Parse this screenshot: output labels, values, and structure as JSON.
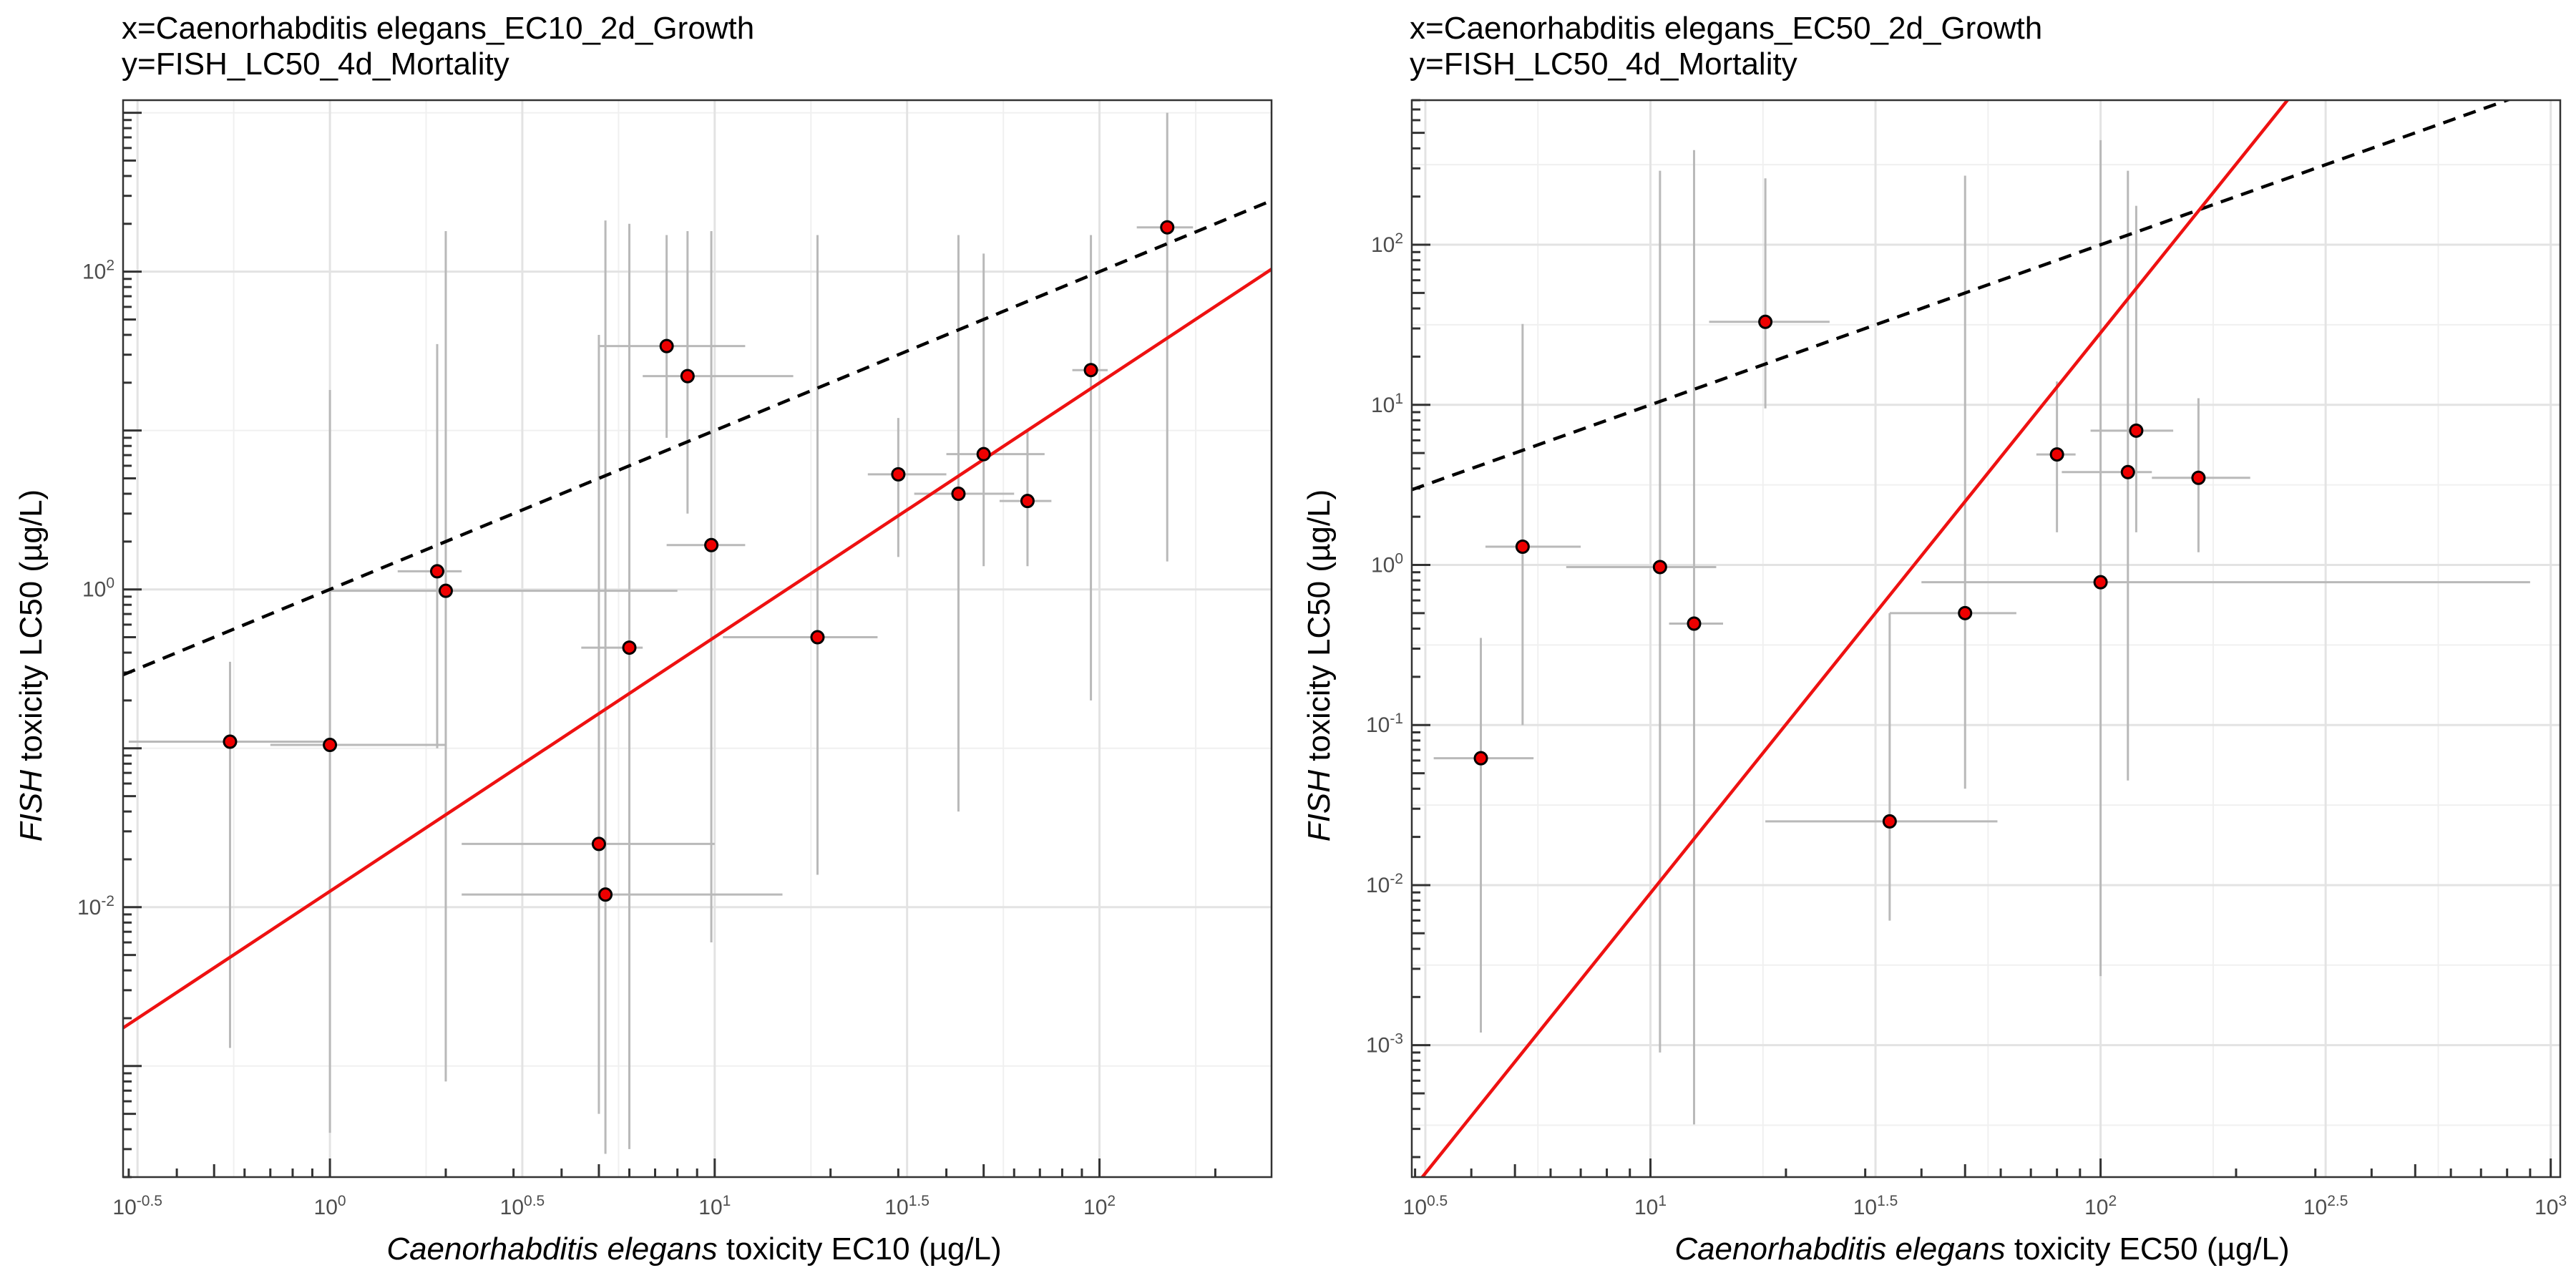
{
  "chart_data": [
    {
      "type": "scatter",
      "title_line1": "x=Caenorhabditis elegans_EC10_2d_Growth",
      "title_line2": "y=FISH_LC50_4d_Mortality",
      "xlabel_italic": "Caenorhabditis elegans",
      "xlabel_rest": " toxicity EC10 (µg/L)",
      "ylabel_italic": "FISH",
      "ylabel_rest": " toxicity LC50 (µg/L)",
      "xscale": "log10",
      "yscale": "log10",
      "xlim": [
        0.29,
        280
      ],
      "ylim": [
        0.0002,
        1200
      ],
      "x_ticks": [
        {
          "base": "10",
          "exp": "-0.5",
          "value": 0.3162
        },
        {
          "base": "10",
          "exp": "0",
          "value": 1
        },
        {
          "base": "10",
          "exp": "0.5",
          "value": 3.162
        },
        {
          "base": "10",
          "exp": "1",
          "value": 10
        },
        {
          "base": "10",
          "exp": "1.5",
          "value": 31.62
        },
        {
          "base": "10",
          "exp": "2",
          "value": 100
        }
      ],
      "y_ticks": [
        {
          "base": "10",
          "exp": "-2",
          "value": 0.01
        },
        {
          "base": "10",
          "exp": "0",
          "value": 1
        },
        {
          "base": "10",
          "exp": "2",
          "value": 100
        }
      ],
      "grid": true,
      "legend": "none",
      "fit_line": {
        "intercept_log10": -1.9,
        "slope": 1.6,
        "color": "#ee1111"
      },
      "reference_line": {
        "label": "1:1",
        "slope": 1,
        "intercept_log10": 0,
        "color": "#000000"
      },
      "points": [
        {
          "x": 0.55,
          "y": 0.11,
          "xmin": 0.3,
          "xmax": 1.0,
          "ymin": 0.0013,
          "ymax": 0.35
        },
        {
          "x": 1.0,
          "y": 0.105,
          "xmin": 0.7,
          "xmax": 2.0,
          "ymin": 0.00038,
          "ymax": 18
        },
        {
          "x": 1.9,
          "y": 1.3,
          "xmin": 1.5,
          "xmax": 2.2,
          "ymin": 0.1,
          "ymax": 35
        },
        {
          "x": 2.0,
          "y": 0.98,
          "xmin": 1.0,
          "xmax": 8.0,
          "ymin": 0.0008,
          "ymax": 180
        },
        {
          "x": 5.0,
          "y": 0.025,
          "xmin": 2.2,
          "xmax": 10.0,
          "ymin": 0.0005,
          "ymax": 40
        },
        {
          "x": 5.2,
          "y": 0.012,
          "xmin": 2.2,
          "xmax": 15.0,
          "ymin": 0.00028,
          "ymax": 210
        },
        {
          "x": 6.0,
          "y": 0.43,
          "xmin": 4.5,
          "xmax": 6.5,
          "ymin": 0.0003,
          "ymax": 200
        },
        {
          "x": 7.5,
          "y": 34,
          "xmin": 5.0,
          "xmax": 12.0,
          "ymin": 9,
          "ymax": 170
        },
        {
          "x": 8.5,
          "y": 22,
          "xmin": 6.5,
          "xmax": 16.0,
          "ymin": 3,
          "ymax": 180
        },
        {
          "x": 9.8,
          "y": 1.9,
          "xmin": 7.5,
          "xmax": 12.0,
          "ymin": 0.006,
          "ymax": 180
        },
        {
          "x": 18.5,
          "y": 0.5,
          "xmin": 10.5,
          "xmax": 26.5,
          "ymin": 0.016,
          "ymax": 170
        },
        {
          "x": 30.0,
          "y": 5.3,
          "xmin": 25.0,
          "xmax": 40.0,
          "ymin": 1.6,
          "ymax": 12
        },
        {
          "x": 43.0,
          "y": 4.0,
          "xmin": 33.0,
          "xmax": 60.0,
          "ymin": 0.04,
          "ymax": 170
        },
        {
          "x": 50.0,
          "y": 7.1,
          "xmin": 40.0,
          "xmax": 72.0,
          "ymin": 1.4,
          "ymax": 130
        },
        {
          "x": 65.0,
          "y": 3.6,
          "xmin": 55.0,
          "xmax": 75.0,
          "ymin": 1.4,
          "ymax": 10
        },
        {
          "x": 95.0,
          "y": 24,
          "xmin": 85.0,
          "xmax": 105.0,
          "ymin": 0.2,
          "ymax": 170
        },
        {
          "x": 150.0,
          "y": 190,
          "xmin": 125.0,
          "xmax": 175.0,
          "ymin": 1.5,
          "ymax": 1000
        }
      ]
    },
    {
      "type": "scatter",
      "title_line1": "x=Caenorhabditis elegans_EC50_2d_Growth",
      "title_line2": "y=FISH_LC50_4d_Mortality",
      "xlabel_italic": "Caenorhabditis elegans",
      "xlabel_rest": " toxicity EC50 (µg/L)",
      "ylabel_italic": "FISH",
      "ylabel_rest": " toxicity LC50 (µg/L)",
      "xscale": "log10",
      "yscale": "log10",
      "xlim": [
        2.95,
        1050
      ],
      "ylim": [
        0.00015,
        800
      ],
      "x_ticks": [
        {
          "base": "10",
          "exp": "0.5",
          "value": 3.162
        },
        {
          "base": "10",
          "exp": "1",
          "value": 10
        },
        {
          "base": "10",
          "exp": "1.5",
          "value": 31.62
        },
        {
          "base": "10",
          "exp": "2",
          "value": 100
        },
        {
          "base": "10",
          "exp": "2.5",
          "value": 316.2
        },
        {
          "base": "10",
          "exp": "3",
          "value": 1000
        }
      ],
      "y_ticks": [
        {
          "base": "10",
          "exp": "-3",
          "value": 0.001
        },
        {
          "base": "10",
          "exp": "-2",
          "value": 0.01
        },
        {
          "base": "10",
          "exp": "-1",
          "value": 0.1
        },
        {
          "base": "10",
          "exp": "0",
          "value": 1
        },
        {
          "base": "10",
          "exp": "1",
          "value": 10
        },
        {
          "base": "10",
          "exp": "2",
          "value": 100
        }
      ],
      "grid": true,
      "legend": "none",
      "fit_line": {
        "intercept_log10": -5.55,
        "slope": 3.5,
        "color": "#ee1111"
      },
      "reference_line": {
        "label": "1:1",
        "slope": 1,
        "intercept_log10": 0,
        "color": "#000000"
      },
      "points": [
        {
          "x": 4.2,
          "y": 0.062,
          "xmin": 3.3,
          "xmax": 5.5,
          "ymin": 0.0012,
          "ymax": 0.35
        },
        {
          "x": 5.2,
          "y": 1.3,
          "xmin": 4.3,
          "xmax": 7.0,
          "ymin": 0.1,
          "ymax": 32
        },
        {
          "x": 10.5,
          "y": 0.97,
          "xmin": 6.5,
          "xmax": 14.0,
          "ymin": 0.0009,
          "ymax": 290
        },
        {
          "x": 12.5,
          "y": 0.43,
          "xmin": 11.0,
          "xmax": 14.5,
          "ymin": 0.00032,
          "ymax": 390
        },
        {
          "x": 18.0,
          "y": 33,
          "xmin": 13.5,
          "xmax": 25.0,
          "ymin": 9.5,
          "ymax": 260
        },
        {
          "x": 34.0,
          "y": 0.025,
          "xmin": 18.0,
          "xmax": 59.0,
          "ymin": 0.006,
          "ymax": 0.5
        },
        {
          "x": 50.0,
          "y": 0.5,
          "xmin": 34.0,
          "xmax": 65.0,
          "ymin": 0.04,
          "ymax": 270
        },
        {
          "x": 100.0,
          "y": 0.78,
          "xmin": 40.0,
          "xmax": 900.0,
          "ymin": 0.0027,
          "ymax": 450
        },
        {
          "x": 80.0,
          "y": 4.9,
          "xmin": 72.0,
          "xmax": 88.0,
          "ymin": 1.6,
          "ymax": 14
        },
        {
          "x": 115.0,
          "y": 3.8,
          "xmin": 82.0,
          "xmax": 130.0,
          "ymin": 0.045,
          "ymax": 290
        },
        {
          "x": 120.0,
          "y": 6.9,
          "xmin": 95.0,
          "xmax": 145.0,
          "ymin": 1.6,
          "ymax": 175
        },
        {
          "x": 165.0,
          "y": 3.5,
          "xmin": 130.0,
          "xmax": 215.0,
          "ymin": 1.2,
          "ymax": 11
        }
      ]
    }
  ]
}
